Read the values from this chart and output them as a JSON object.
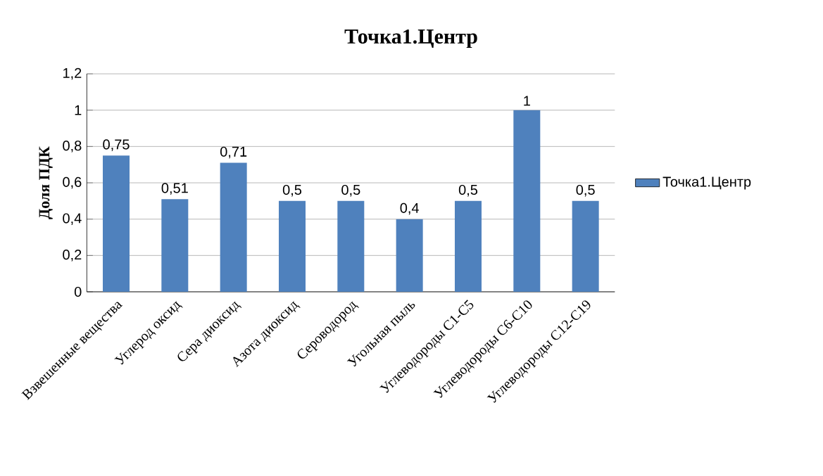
{
  "chart_data": {
    "type": "bar",
    "title": "Точка1.Центр",
    "ylabel": "Доля ПДК",
    "categories": [
      "Взвешенные вещества",
      "Углерод оксид",
      "Сера диоксид",
      "Азота диоксид",
      "Сероводород",
      "Угольная пыль",
      "Углеводороды С1-С5",
      "Углеводороды С6-С10",
      "Углеводороды С12-С19"
    ],
    "series": [
      {
        "name": "Точка1.Центр",
        "color": "#4f81bd",
        "values": [
          0.75,
          0.51,
          0.71,
          0.5,
          0.5,
          0.4,
          0.5,
          1,
          0.5
        ],
        "value_labels": [
          "0,75",
          "0,51",
          "0,71",
          "0,5",
          "0,5",
          "0,4",
          "0,5",
          "1",
          "0,5"
        ]
      }
    ],
    "ylim": [
      0,
      1.2
    ],
    "yticks": [
      0,
      {
        "value": 0.2,
        "label": "0,2"
      },
      {
        "value": 0.4,
        "label": "0,4"
      },
      {
        "value": 0.6,
        "label": "0,6"
      },
      {
        "value": 0.8,
        "label": "0,8"
      },
      1,
      {
        "value": 1.2,
        "label": "1,2"
      }
    ],
    "grid": "y",
    "legend": "right"
  }
}
